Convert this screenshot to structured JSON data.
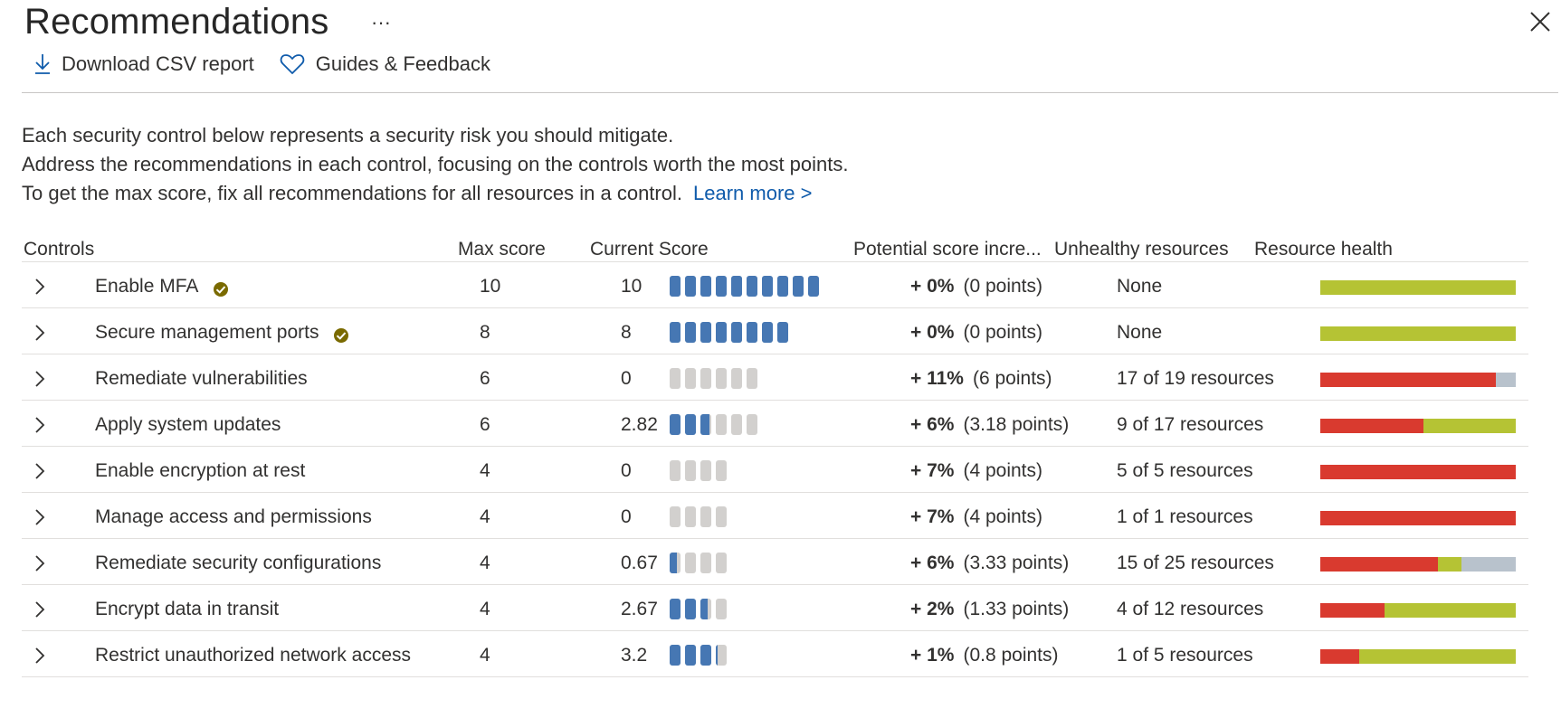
{
  "header": {
    "title": "Recommendations",
    "more": "···",
    "toolbar": {
      "download_label": "Download CSV report",
      "guides_label": "Guides & Feedback"
    }
  },
  "intro": {
    "lines": [
      "Each security control below represents a security risk you should mitigate.",
      "Address the recommendations in each control, focusing on the controls worth the most points.",
      "To get the max score, fix all recommendations for all resources in a control."
    ],
    "learn_more": "Learn more >"
  },
  "colors": {
    "accent_link": "#0f5bab",
    "score_bar": "#4677b3",
    "score_bar_empty": "#d2d0ce",
    "unhealthy": "#d93a2f",
    "healthy": "#b5c334",
    "not_applicable": "#b8c2cc",
    "check_badge": "#7a6a00"
  },
  "table": {
    "headers": {
      "controls": "Controls",
      "max": "Max score",
      "current": "Current Score",
      "potential": "Potential score incre...",
      "unhealthy": "Unhealthy resources",
      "health": "Resource health"
    },
    "rows": [
      {
        "name": "Enable MFA",
        "completed": true,
        "max": "10",
        "max_n": 10,
        "current": "10",
        "current_n": 10,
        "pct": "+ 0%",
        "pts": "(0 points)",
        "unhealthy": "None",
        "health": {
          "unhealthy": 0,
          "healthy": 1,
          "na": 0
        }
      },
      {
        "name": "Secure management ports",
        "completed": true,
        "max": "8",
        "max_n": 8,
        "current": "8",
        "current_n": 8,
        "pct": "+ 0%",
        "pts": "(0 points)",
        "unhealthy": "None",
        "health": {
          "unhealthy": 0,
          "healthy": 1,
          "na": 0
        }
      },
      {
        "name": "Remediate vulnerabilities",
        "completed": false,
        "max": "6",
        "max_n": 6,
        "current": "0",
        "current_n": 0,
        "pct": "+ 11%",
        "pts": "(6 points)",
        "unhealthy": "17 of 19 resources",
        "health": {
          "unhealthy": 0.9,
          "healthy": 0,
          "na": 0.1
        }
      },
      {
        "name": "Apply system updates",
        "completed": false,
        "max": "6",
        "max_n": 6,
        "current": "2.82",
        "current_n": 2.82,
        "pct": "+ 6%",
        "pts": "(3.18 points)",
        "unhealthy": "9 of 17 resources",
        "health": {
          "unhealthy": 0.53,
          "healthy": 0.47,
          "na": 0
        }
      },
      {
        "name": "Enable encryption at rest",
        "completed": false,
        "max": "4",
        "max_n": 4,
        "current": "0",
        "current_n": 0,
        "pct": "+ 7%",
        "pts": "(4 points)",
        "unhealthy": "5 of 5 resources",
        "health": {
          "unhealthy": 1,
          "healthy": 0,
          "na": 0
        }
      },
      {
        "name": "Manage access and permissions",
        "completed": false,
        "max": "4",
        "max_n": 4,
        "current": "0",
        "current_n": 0,
        "pct": "+ 7%",
        "pts": "(4 points)",
        "unhealthy": "1 of 1 resources",
        "health": {
          "unhealthy": 1,
          "healthy": 0,
          "na": 0
        }
      },
      {
        "name": "Remediate security configurations",
        "completed": false,
        "max": "4",
        "max_n": 4,
        "current": "0.67",
        "current_n": 0.67,
        "pct": "+ 6%",
        "pts": "(3.33 points)",
        "unhealthy": "15 of 25 resources",
        "health": {
          "unhealthy": 0.6,
          "healthy": 0.12,
          "na": 0.28
        }
      },
      {
        "name": "Encrypt data in transit",
        "completed": false,
        "max": "4",
        "max_n": 4,
        "current": "2.67",
        "current_n": 2.67,
        "pct": "+ 2%",
        "pts": "(1.33 points)",
        "unhealthy": "4 of 12 resources",
        "health": {
          "unhealthy": 0.33,
          "healthy": 0.67,
          "na": 0
        }
      },
      {
        "name": "Restrict unauthorized network access",
        "completed": false,
        "max": "4",
        "max_n": 4,
        "current": "3.2",
        "current_n": 3.2,
        "pct": "+ 1%",
        "pts": "(0.8 points)",
        "unhealthy": "1 of 5 resources",
        "health": {
          "unhealthy": 0.2,
          "healthy": 0.8,
          "na": 0
        }
      }
    ]
  }
}
